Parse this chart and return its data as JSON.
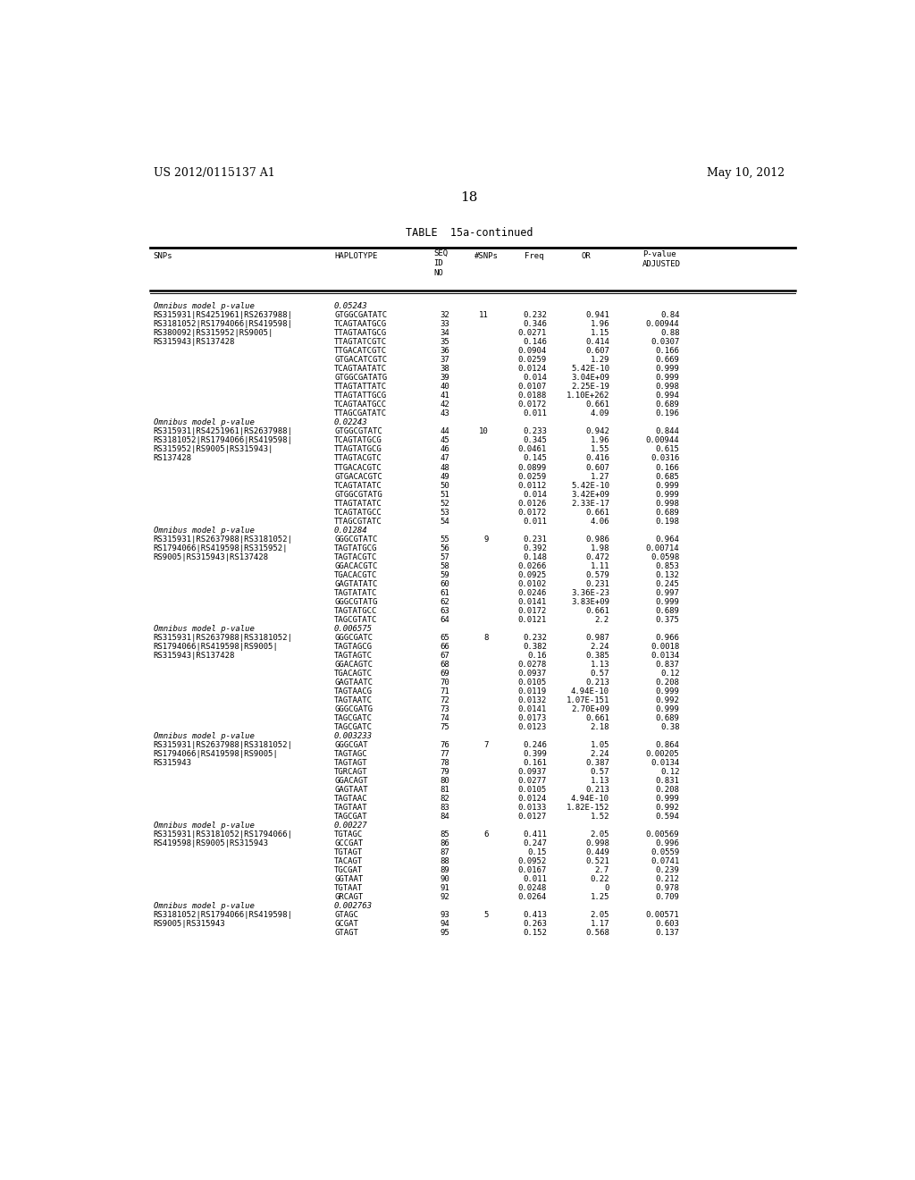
{
  "header_left": "US 2012/0115137 A1",
  "header_right": "May 10, 2012",
  "page_number": "18",
  "table_title": "TABLE  15a-continued",
  "rows": [
    {
      "snp": "Omnibus model p-value",
      "hap": "0.05243",
      "no": "",
      "nsnp": "",
      "freq": "",
      "or": "",
      "pval": "",
      "italic": true
    },
    {
      "snp": "RS315931|RS4251961|RS2637988|",
      "hap": "GTGGCGATATC",
      "no": "32",
      "nsnp": "11",
      "freq": "0.232",
      "or": "0.941",
      "pval": "0.84"
    },
    {
      "snp": "RS3181052|RS1794066|RS419598|",
      "hap": "TCAGTAATGCG",
      "no": "33",
      "nsnp": "",
      "freq": "0.346",
      "or": "1.96",
      "pval": "0.00944"
    },
    {
      "snp": "RS380092|RS315952|RS9005|",
      "hap": "TTAGTAATGCG",
      "no": "34",
      "nsnp": "",
      "freq": "0.0271",
      "or": "1.15",
      "pval": "0.88"
    },
    {
      "snp": "RS315943|RS137428",
      "hap": "TTAGTATCGTC",
      "no": "35",
      "nsnp": "",
      "freq": "0.146",
      "or": "0.414",
      "pval": "0.0307"
    },
    {
      "snp": "",
      "hap": "TTGACATCGTC",
      "no": "36",
      "nsnp": "",
      "freq": "0.0904",
      "or": "0.607",
      "pval": "0.166"
    },
    {
      "snp": "",
      "hap": "GTGACATCGTC",
      "no": "37",
      "nsnp": "",
      "freq": "0.0259",
      "or": "1.29",
      "pval": "0.669"
    },
    {
      "snp": "",
      "hap": "TCAGTAATATC",
      "no": "38",
      "nsnp": "",
      "freq": "0.0124",
      "or": "5.42E-10",
      "pval": "0.999"
    },
    {
      "snp": "",
      "hap": "GTGGCGATATG",
      "no": "39",
      "nsnp": "",
      "freq": "0.014",
      "or": "3.04E+09",
      "pval": "0.999"
    },
    {
      "snp": "",
      "hap": "TTAGTATTATC",
      "no": "40",
      "nsnp": "",
      "freq": "0.0107",
      "or": "2.25E-19",
      "pval": "0.998"
    },
    {
      "snp": "",
      "hap": "TTAGTATTGCG",
      "no": "41",
      "nsnp": "",
      "freq": "0.0188",
      "or": "1.10E+262",
      "pval": "0.994"
    },
    {
      "snp": "",
      "hap": "TCAGTAATGCC",
      "no": "42",
      "nsnp": "",
      "freq": "0.0172",
      "or": "0.661",
      "pval": "0.689"
    },
    {
      "snp": "",
      "hap": "TTAGCGATATC",
      "no": "43",
      "nsnp": "",
      "freq": "0.011",
      "or": "4.09",
      "pval": "0.196"
    },
    {
      "snp": "Omnibus model p-value",
      "hap": "0.02243",
      "no": "",
      "nsnp": "",
      "freq": "",
      "or": "",
      "pval": "",
      "italic": true
    },
    {
      "snp": "RS315931|RS4251961|RS2637988|",
      "hap": "GTGGCGTATC",
      "no": "44",
      "nsnp": "10",
      "freq": "0.233",
      "or": "0.942",
      "pval": "0.844"
    },
    {
      "snp": "RS3181052|RS1794066|RS419598|",
      "hap": "TCAGTATGCG",
      "no": "45",
      "nsnp": "",
      "freq": "0.345",
      "or": "1.96",
      "pval": "0.00944"
    },
    {
      "snp": "RS315952|RS9005|RS315943|",
      "hap": "TTAGTATGCG",
      "no": "46",
      "nsnp": "",
      "freq": "0.0461",
      "or": "1.55",
      "pval": "0.615"
    },
    {
      "snp": "RS137428",
      "hap": "TTAGTACGTC",
      "no": "47",
      "nsnp": "",
      "freq": "0.145",
      "or": "0.416",
      "pval": "0.0316"
    },
    {
      "snp": "",
      "hap": "TTGACACGTC",
      "no": "48",
      "nsnp": "",
      "freq": "0.0899",
      "or": "0.607",
      "pval": "0.166"
    },
    {
      "snp": "",
      "hap": "GTGACACGTC",
      "no": "49",
      "nsnp": "",
      "freq": "0.0259",
      "or": "1.27",
      "pval": "0.685"
    },
    {
      "snp": "",
      "hap": "TCAGTATATC",
      "no": "50",
      "nsnp": "",
      "freq": "0.0112",
      "or": "5.42E-10",
      "pval": "0.999"
    },
    {
      "snp": "",
      "hap": "GTGGCGTATG",
      "no": "51",
      "nsnp": "",
      "freq": "0.014",
      "or": "3.42E+09",
      "pval": "0.999"
    },
    {
      "snp": "",
      "hap": "TTAGTATATC",
      "no": "52",
      "nsnp": "",
      "freq": "0.0126",
      "or": "2.33E-17",
      "pval": "0.998"
    },
    {
      "snp": "",
      "hap": "TCAGTATGCC",
      "no": "53",
      "nsnp": "",
      "freq": "0.0172",
      "or": "0.661",
      "pval": "0.689"
    },
    {
      "snp": "",
      "hap": "TTAGCGTATC",
      "no": "54",
      "nsnp": "",
      "freq": "0.011",
      "or": "4.06",
      "pval": "0.198"
    },
    {
      "snp": "Omnibus model p-value",
      "hap": "0.01284",
      "no": "",
      "nsnp": "",
      "freq": "",
      "or": "",
      "pval": "",
      "italic": true
    },
    {
      "snp": "RS315931|RS2637988|RS3181052|",
      "hap": "GGGCGTATC",
      "no": "55",
      "nsnp": "9",
      "freq": "0.231",
      "or": "0.986",
      "pval": "0.964"
    },
    {
      "snp": "RS1794066|RS419598|RS315952|",
      "hap": "TAGTATGCG",
      "no": "56",
      "nsnp": "",
      "freq": "0.392",
      "or": "1.98",
      "pval": "0.00714"
    },
    {
      "snp": "RS9005|RS315943|RS137428",
      "hap": "TAGTACGTC",
      "no": "57",
      "nsnp": "",
      "freq": "0.148",
      "or": "0.472",
      "pval": "0.0598"
    },
    {
      "snp": "",
      "hap": "GGACACGTC",
      "no": "58",
      "nsnp": "",
      "freq": "0.0266",
      "or": "1.11",
      "pval": "0.853"
    },
    {
      "snp": "",
      "hap": "TGACACGTC",
      "no": "59",
      "nsnp": "",
      "freq": "0.0925",
      "or": "0.579",
      "pval": "0.132"
    },
    {
      "snp": "",
      "hap": "GAGTATATC",
      "no": "60",
      "nsnp": "",
      "freq": "0.0102",
      "or": "0.231",
      "pval": "0.245"
    },
    {
      "snp": "",
      "hap": "TAGTATATC",
      "no": "61",
      "nsnp": "",
      "freq": "0.0246",
      "or": "3.36E-23",
      "pval": "0.997"
    },
    {
      "snp": "",
      "hap": "GGGCGTATG",
      "no": "62",
      "nsnp": "",
      "freq": "0.0141",
      "or": "3.83E+09",
      "pval": "0.999"
    },
    {
      "snp": "",
      "hap": "TAGTATGCC",
      "no": "63",
      "nsnp": "",
      "freq": "0.0172",
      "or": "0.661",
      "pval": "0.689"
    },
    {
      "snp": "",
      "hap": "TAGCGTATC",
      "no": "64",
      "nsnp": "",
      "freq": "0.0121",
      "or": "2.2",
      "pval": "0.375"
    },
    {
      "snp": "Omnibus model p-value",
      "hap": "0.006575",
      "no": "",
      "nsnp": "",
      "freq": "",
      "or": "",
      "pval": "",
      "italic": true
    },
    {
      "snp": "RS315931|RS2637988|RS3181052|",
      "hap": "GGGCGATC",
      "no": "65",
      "nsnp": "8",
      "freq": "0.232",
      "or": "0.987",
      "pval": "0.966"
    },
    {
      "snp": "RS1794066|RS419598|RS9005|",
      "hap": "TAGTAGCG",
      "no": "66",
      "nsnp": "",
      "freq": "0.382",
      "or": "2.24",
      "pval": "0.0018"
    },
    {
      "snp": "RS315943|RS137428",
      "hap": "TAGTAGTC",
      "no": "67",
      "nsnp": "",
      "freq": "0.16",
      "or": "0.385",
      "pval": "0.0134"
    },
    {
      "snp": "",
      "hap": "GGACAGTC",
      "no": "68",
      "nsnp": "",
      "freq": "0.0278",
      "or": "1.13",
      "pval": "0.837"
    },
    {
      "snp": "",
      "hap": "TGACAGTC",
      "no": "69",
      "nsnp": "",
      "freq": "0.0937",
      "or": "0.57",
      "pval": "0.12"
    },
    {
      "snp": "",
      "hap": "GAGTAATC",
      "no": "70",
      "nsnp": "",
      "freq": "0.0105",
      "or": "0.213",
      "pval": "0.208"
    },
    {
      "snp": "",
      "hap": "TAGTAACG",
      "no": "71",
      "nsnp": "",
      "freq": "0.0119",
      "or": "4.94E-10",
      "pval": "0.999"
    },
    {
      "snp": "",
      "hap": "TAGTAATC",
      "no": "72",
      "nsnp": "",
      "freq": "0.0132",
      "or": "1.07E-151",
      "pval": "0.992"
    },
    {
      "snp": "",
      "hap": "GGGCGATG",
      "no": "73",
      "nsnp": "",
      "freq": "0.0141",
      "or": "2.70E+09",
      "pval": "0.999"
    },
    {
      "snp": "",
      "hap": "TAGCGATC",
      "no": "74",
      "nsnp": "",
      "freq": "0.0173",
      "or": "0.661",
      "pval": "0.689"
    },
    {
      "snp": "",
      "hap": "TAGCGATC",
      "no": "75",
      "nsnp": "",
      "freq": "0.0123",
      "or": "2.18",
      "pval": "0.38"
    },
    {
      "snp": "Omnibus model p-value",
      "hap": "0.003233",
      "no": "",
      "nsnp": "",
      "freq": "",
      "or": "",
      "pval": "",
      "italic": true
    },
    {
      "snp": "RS315931|RS2637988|RS3181052|",
      "hap": "GGGCGAT",
      "no": "76",
      "nsnp": "7",
      "freq": "0.246",
      "or": "1.05",
      "pval": "0.864"
    },
    {
      "snp": "RS1794066|RS419598|RS9005|",
      "hap": "TAGTAGC",
      "no": "77",
      "nsnp": "",
      "freq": "0.399",
      "or": "2.24",
      "pval": "0.00205"
    },
    {
      "snp": "RS315943",
      "hap": "TAGTAGT",
      "no": "78",
      "nsnp": "",
      "freq": "0.161",
      "or": "0.387",
      "pval": "0.0134"
    },
    {
      "snp": "",
      "hap": "TGRCAGT",
      "no": "79",
      "nsnp": "",
      "freq": "0.0937",
      "or": "0.57",
      "pval": "0.12"
    },
    {
      "snp": "",
      "hap": "GGACAGT",
      "no": "80",
      "nsnp": "",
      "freq": "0.0277",
      "or": "1.13",
      "pval": "0.831"
    },
    {
      "snp": "",
      "hap": "GAGTAAT",
      "no": "81",
      "nsnp": "",
      "freq": "0.0105",
      "or": "0.213",
      "pval": "0.208"
    },
    {
      "snp": "",
      "hap": "TAGTAAC",
      "no": "82",
      "nsnp": "",
      "freq": "0.0124",
      "or": "4.94E-10",
      "pval": "0.999"
    },
    {
      "snp": "",
      "hap": "TAGTAAT",
      "no": "83",
      "nsnp": "",
      "freq": "0.0133",
      "or": "1.82E-152",
      "pval": "0.992"
    },
    {
      "snp": "",
      "hap": "TAGCGAT",
      "no": "84",
      "nsnp": "",
      "freq": "0.0127",
      "or": "1.52",
      "pval": "0.594"
    },
    {
      "snp": "Omnibus model p-value",
      "hap": "0.00227",
      "no": "",
      "nsnp": "",
      "freq": "",
      "or": "",
      "pval": "",
      "italic": true
    },
    {
      "snp": "RS315931|RS3181052|RS1794066|",
      "hap": "TGTAGC",
      "no": "85",
      "nsnp": "6",
      "freq": "0.411",
      "or": "2.05",
      "pval": "0.00569"
    },
    {
      "snp": "RS419598|RS9005|RS315943",
      "hap": "GCCGAT",
      "no": "86",
      "nsnp": "",
      "freq": "0.247",
      "or": "0.998",
      "pval": "0.996"
    },
    {
      "snp": "",
      "hap": "TGTAGT",
      "no": "87",
      "nsnp": "",
      "freq": "0.15",
      "or": "0.449",
      "pval": "0.0559"
    },
    {
      "snp": "",
      "hap": "TACAGT",
      "no": "88",
      "nsnp": "",
      "freq": "0.0952",
      "or": "0.521",
      "pval": "0.0741"
    },
    {
      "snp": "",
      "hap": "TGCGAT",
      "no": "89",
      "nsnp": "",
      "freq": "0.0167",
      "or": "2.7",
      "pval": "0.239"
    },
    {
      "snp": "",
      "hap": "GGTAAT",
      "no": "90",
      "nsnp": "",
      "freq": "0.011",
      "or": "0.22",
      "pval": "0.212"
    },
    {
      "snp": "",
      "hap": "TGTAAT",
      "no": "91",
      "nsnp": "",
      "freq": "0.0248",
      "or": "0",
      "pval": "0.978"
    },
    {
      "snp": "",
      "hap": "GRCAGT",
      "no": "92",
      "nsnp": "",
      "freq": "0.0264",
      "or": "1.25",
      "pval": "0.709"
    },
    {
      "snp": "Omnibus model p-value",
      "hap": "0.002763",
      "no": "",
      "nsnp": "",
      "freq": "",
      "or": "",
      "pval": "",
      "italic": true
    },
    {
      "snp": "RS3181052|RS1794066|RS419598|",
      "hap": "GTAGC",
      "no": "93",
      "nsnp": "5",
      "freq": "0.413",
      "or": "2.05",
      "pval": "0.00571"
    },
    {
      "snp": "RS9005|RS315943",
      "hap": "GCGAT",
      "no": "94",
      "nsnp": "",
      "freq": "0.263",
      "or": "1.17",
      "pval": "0.603"
    },
    {
      "snp": "",
      "hap": "GTAGT",
      "no": "95",
      "nsnp": "",
      "freq": "0.152",
      "or": "0.568",
      "pval": "0.137"
    }
  ],
  "col_x": {
    "snp": 0.055,
    "hap": 0.31,
    "no": 0.453,
    "nsnp": 0.508,
    "freq": 0.578,
    "or": 0.658,
    "pval": 0.745
  },
  "font_size": 6.5
}
